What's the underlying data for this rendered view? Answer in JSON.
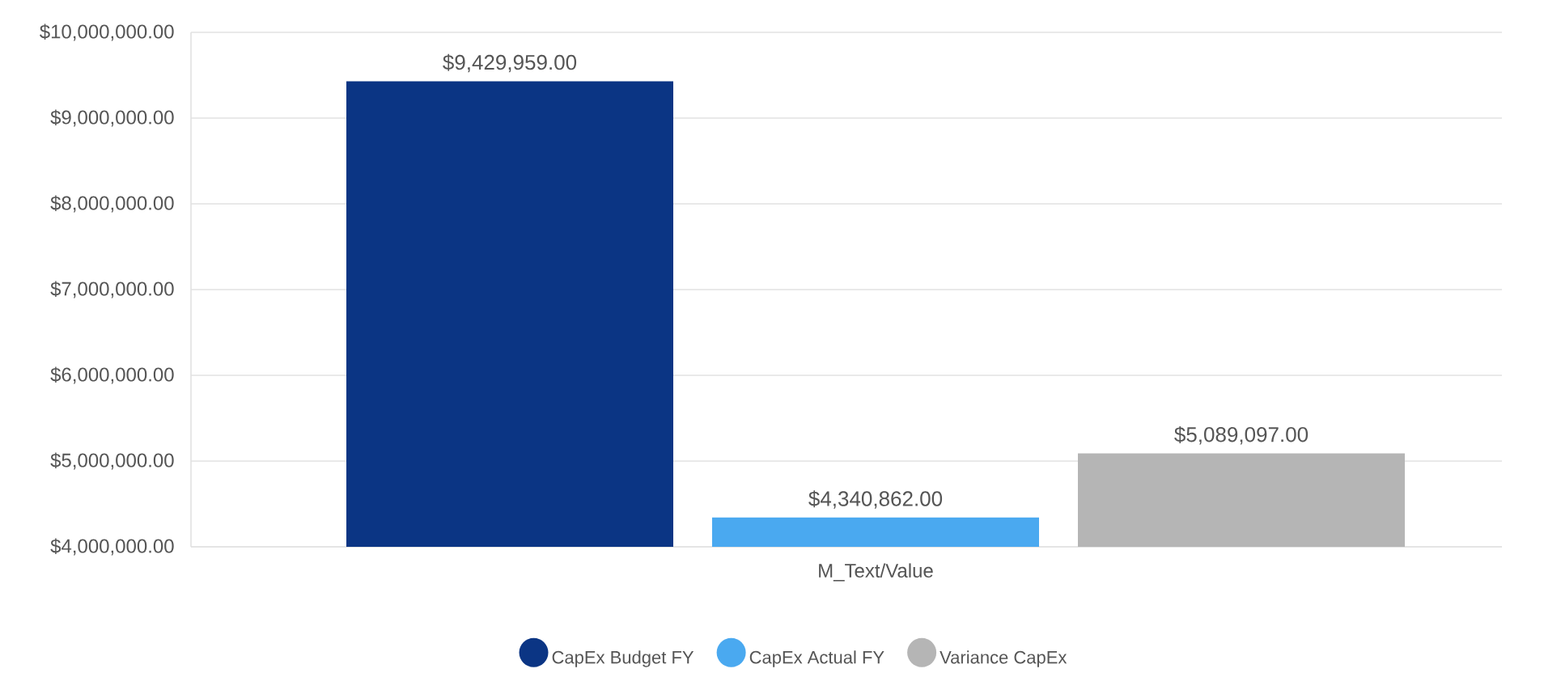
{
  "chart_data": {
    "type": "bar",
    "categories": [
      "M_Text/Value"
    ],
    "series": [
      {
        "name": "CapEx Budget FY",
        "color": "#0b3584",
        "values": [
          9429959
        ],
        "value_labels": [
          "$9,429,959.00"
        ]
      },
      {
        "name": "CapEx Actual FY",
        "color": "#4aa9f0",
        "values": [
          4340862
        ],
        "value_labels": [
          "$4,340,862.00"
        ]
      },
      {
        "name": "Variance CapEx",
        "color": "#b5b5b5",
        "values": [
          5089097
        ],
        "value_labels": [
          "$5,089,097.00"
        ]
      }
    ],
    "ylim": [
      4000000,
      10000000
    ],
    "yticks": [
      {
        "value": 4000000,
        "label": "$4,000,000.00"
      },
      {
        "value": 5000000,
        "label": "$5,000,000.00"
      },
      {
        "value": 6000000,
        "label": "$6,000,000.00"
      },
      {
        "value": 7000000,
        "label": "$7,000,000.00"
      },
      {
        "value": 8000000,
        "label": "$8,000,000.00"
      },
      {
        "value": 9000000,
        "label": "$9,000,000.00"
      },
      {
        "value": 10000000,
        "label": "$10,000,000.00"
      }
    ],
    "grid": "y",
    "legend": "bottom"
  }
}
